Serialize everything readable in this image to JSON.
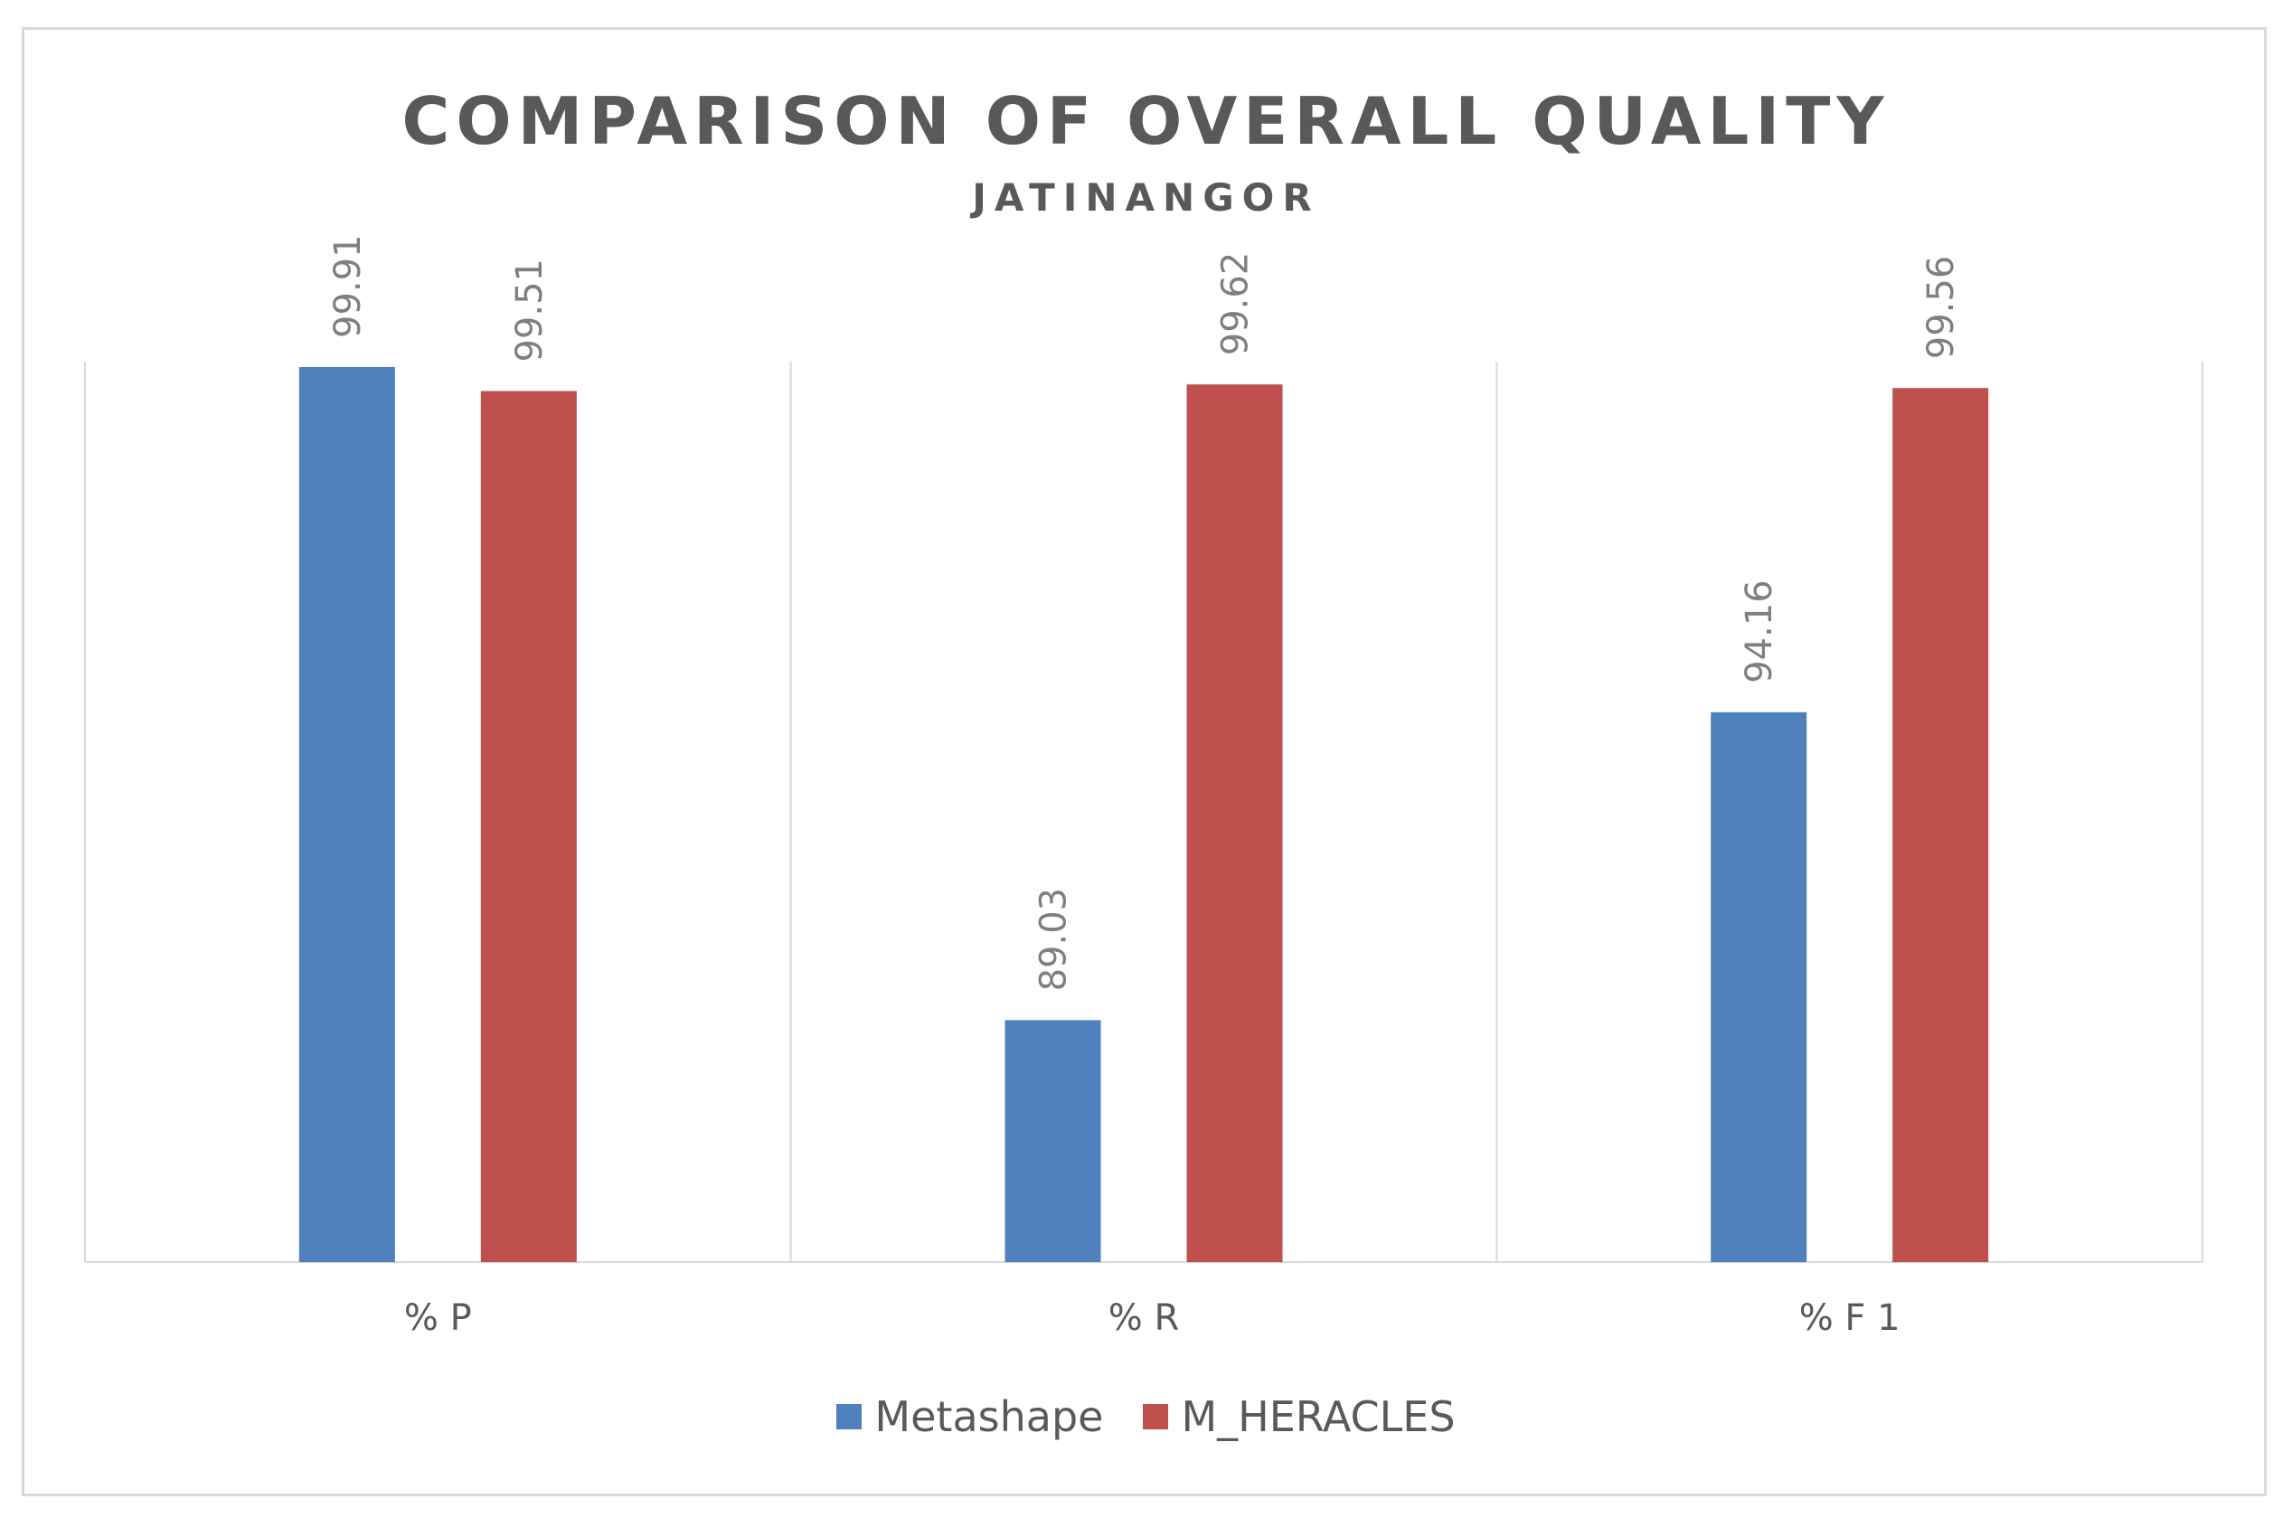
{
  "chart_data": {
    "type": "bar",
    "title": "COMPARISON OF OVERALL QUALITY",
    "subtitle": "JATINANGOR",
    "categories": [
      "% P",
      "% R",
      "% F 1"
    ],
    "series": [
      {
        "name": "Metashape",
        "values": [
          99.91,
          89.03,
          94.16
        ],
        "color": "#4f81bd"
      },
      {
        "name": "M_HERACLES",
        "values": [
          99.51,
          99.62,
          99.56
        ],
        "color": "#c0504d"
      }
    ],
    "data_labels": true,
    "y_axis_visible": false,
    "ylim": [
      85,
      100
    ],
    "grid": "vertical category separators",
    "legend": "bottom"
  }
}
